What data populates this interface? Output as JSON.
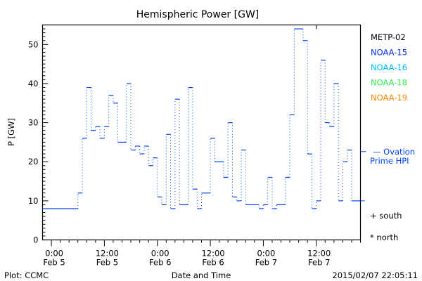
{
  "chart_data": {
    "type": "line",
    "title": "Hemispheric Power [GW]",
    "xlabel": "Date and Time",
    "ylabel": "P [GW]",
    "x_units": "hours since 2015-02-05 00:00",
    "xlim": [
      -2,
      70
    ],
    "ylim": [
      0,
      55
    ],
    "yticks": [
      0,
      10,
      20,
      30,
      40,
      50
    ],
    "xticks": [
      {
        "x": 0,
        "label1": "0:00",
        "label2": "Feb 5"
      },
      {
        "x": 12,
        "label1": "12:00",
        "label2": "Feb 5"
      },
      {
        "x": 24,
        "label1": "0:00",
        "label2": "Feb 6"
      },
      {
        "x": 36,
        "label1": "12:00",
        "label2": "Feb 6"
      },
      {
        "x": 48,
        "label1": "0:00",
        "label2": "Feb 7"
      },
      {
        "x": 60,
        "label1": "12:00",
        "label2": "Feb 7"
      }
    ],
    "series": [
      {
        "name": "NOAA-15",
        "color": "#0044ff",
        "style": "step",
        "end": 70,
        "steps": [
          [
            -2,
            8
          ],
          [
            6,
            12
          ],
          [
            7,
            26
          ],
          [
            8,
            39
          ],
          [
            9,
            28
          ],
          [
            10,
            29
          ],
          [
            11,
            26
          ],
          [
            12,
            29
          ],
          [
            13,
            37
          ],
          [
            14,
            35
          ],
          [
            15,
            25
          ],
          [
            17,
            40
          ],
          [
            18,
            23
          ],
          [
            19,
            24
          ],
          [
            20,
            22
          ],
          [
            21,
            24
          ],
          [
            22,
            19
          ],
          [
            23,
            21
          ],
          [
            24,
            11
          ],
          [
            25,
            9
          ],
          [
            26,
            27
          ],
          [
            27,
            8
          ],
          [
            28,
            36
          ],
          [
            29,
            9
          ],
          [
            31,
            39
          ],
          [
            32,
            13
          ],
          [
            33,
            8
          ],
          [
            34,
            12
          ],
          [
            36,
            26
          ],
          [
            37,
            20
          ],
          [
            39,
            16
          ],
          [
            40,
            30
          ],
          [
            41,
            11
          ],
          [
            42,
            10
          ],
          [
            43,
            23
          ],
          [
            44,
            9
          ],
          [
            47,
            8
          ],
          [
            48,
            9
          ],
          [
            49,
            16
          ],
          [
            50,
            8
          ],
          [
            51,
            9
          ],
          [
            53,
            16
          ],
          [
            54,
            32
          ],
          [
            55,
            54
          ],
          [
            57,
            51
          ],
          [
            58,
            22
          ],
          [
            59,
            8
          ],
          [
            60,
            10
          ],
          [
            61,
            46
          ],
          [
            62,
            30
          ],
          [
            63,
            29
          ],
          [
            64,
            40
          ],
          [
            65,
            10
          ],
          [
            66,
            20
          ],
          [
            67,
            23
          ],
          [
            68,
            10
          ]
        ]
      }
    ],
    "ovation_prime_hpi": 22.6,
    "legend": [
      {
        "label": "METP-02",
        "color": "#000000"
      },
      {
        "label": "NOAA-15",
        "color": "#0033ff"
      },
      {
        "label": "NOAA-16",
        "color": "#00bbff"
      },
      {
        "label": "NOAA-18",
        "color": "#33ee55"
      },
      {
        "label": "NOAA-19",
        "color": "#ff8800"
      }
    ],
    "ovation_label1": "— Ovation",
    "ovation_label2": "Prime HPI",
    "south_label": "+ south",
    "north_label": "* north",
    "footer_left": "Plot: CCMC",
    "footer_right": "2015/02/07 22:05:11"
  }
}
